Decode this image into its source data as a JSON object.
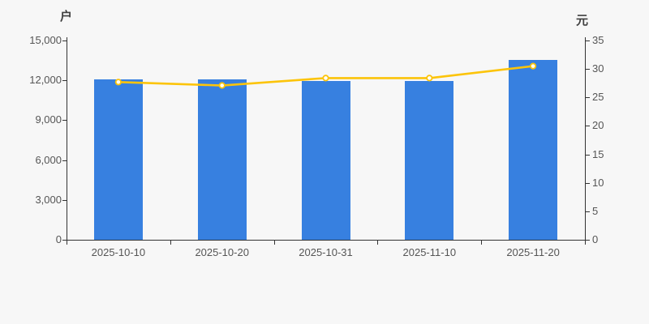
{
  "chart_data": {
    "type": "bar",
    "title": "",
    "categories": [
      "2025-10-10",
      "2025-10-20",
      "2025-10-31",
      "2025-11-10",
      "2025-11-20"
    ],
    "series": [
      {
        "name": "bar-series",
        "type": "bar",
        "y_axis": "left",
        "values": [
          12070,
          12090,
          11970,
          11930,
          13520
        ]
      },
      {
        "name": "line-series",
        "type": "line",
        "y_axis": "right",
        "values": [
          27.7,
          27.1,
          28.4,
          28.4,
          30.5
        ]
      }
    ],
    "y_left": {
      "name": "户",
      "min": 0,
      "max": 15000,
      "ticks": [
        0,
        3000,
        6000,
        9000,
        12000,
        15000
      ],
      "tick_labels": [
        "0",
        "3,000",
        "6,000",
        "9,000",
        "12,000",
        "15,000"
      ]
    },
    "y_right": {
      "name": "元",
      "min": 0,
      "max": 35,
      "ticks": [
        0,
        5,
        10,
        15,
        20,
        25,
        30,
        35
      ],
      "tick_labels": [
        "0",
        "5",
        "10",
        "15",
        "20",
        "25",
        "30",
        "35"
      ]
    },
    "layout": {
      "grid": "off",
      "legend": "none"
    },
    "colors": {
      "bar": "#3780e0",
      "line": "#fcc40a",
      "marker_fill": "#ffffff",
      "axis": "#333333",
      "tick_text": "#555555",
      "background": "#f7f7f7"
    }
  }
}
